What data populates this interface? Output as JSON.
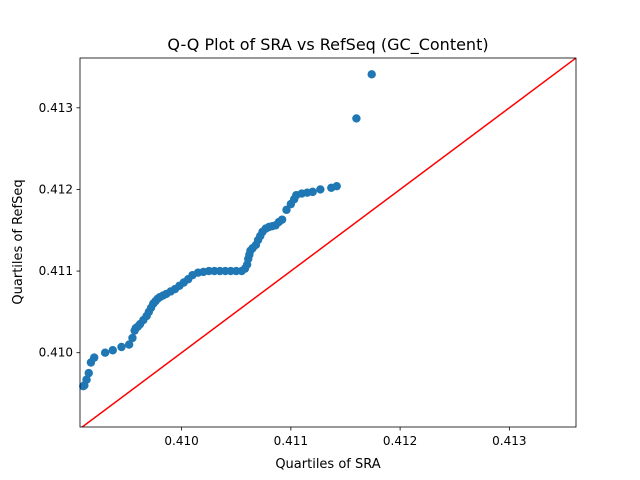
{
  "chart_data": {
    "type": "scatter",
    "title": "Q-Q Plot of SRA vs RefSeq (GC_Content)",
    "xlabel": "Quartiles of SRA",
    "ylabel": "Quartiles of RefSeq",
    "xlim": [
      0.40907,
      0.41361
    ],
    "ylim": [
      0.40909,
      0.41361
    ],
    "xticks": [
      "0.410",
      "0.411",
      "0.412",
      "0.413"
    ],
    "xtick_values": [
      0.41,
      0.411,
      0.412,
      0.413
    ],
    "yticks": [
      "0.410",
      "0.411",
      "0.412",
      "0.413"
    ],
    "ytick_values": [
      0.41,
      0.411,
      0.412,
      0.413
    ],
    "grid": false,
    "colors": {
      "points": "#1f77b4",
      "reference_line": "#ff0000"
    },
    "reference_line": {
      "slope": 1,
      "intercept": 0
    },
    "points": {
      "x": [
        0.4091,
        0.40911,
        0.40913,
        0.40915,
        0.40917,
        0.4092,
        0.4093,
        0.40937,
        0.40945,
        0.40952,
        0.40955,
        0.40957,
        0.40958,
        0.4096,
        0.40962,
        0.40965,
        0.40968,
        0.4097,
        0.40972,
        0.40974,
        0.40976,
        0.40978,
        0.4098,
        0.40983,
        0.40986,
        0.4099,
        0.40994,
        0.40998,
        0.41002,
        0.41006,
        0.4101,
        0.41015,
        0.4102,
        0.41025,
        0.4103,
        0.41035,
        0.4104,
        0.41045,
        0.4105,
        0.41055,
        0.41058,
        0.4106,
        0.41061,
        0.41062,
        0.41063,
        0.41065,
        0.41068,
        0.4107,
        0.41072,
        0.41074,
        0.41077,
        0.4108,
        0.41083,
        0.41086,
        0.41089,
        0.41092,
        0.41096,
        0.411,
        0.41103,
        0.41105,
        0.4111,
        0.41115,
        0.4112,
        0.41127,
        0.41137,
        0.41142,
        0.4116,
        0.41174
      ],
      "y": [
        0.40959,
        0.4096,
        0.40967,
        0.40975,
        0.40988,
        0.40994,
        0.41,
        0.41003,
        0.41007,
        0.4101,
        0.41018,
        0.41027,
        0.4103,
        0.41032,
        0.41035,
        0.4104,
        0.41045,
        0.4105,
        0.41055,
        0.4106,
        0.41063,
        0.41066,
        0.41068,
        0.4107,
        0.41072,
        0.41075,
        0.41078,
        0.41082,
        0.41086,
        0.4109,
        0.41095,
        0.41098,
        0.41099,
        0.411,
        0.411,
        0.411,
        0.411,
        0.411,
        0.411,
        0.411,
        0.41103,
        0.41108,
        0.41115,
        0.4112,
        0.41125,
        0.41128,
        0.41132,
        0.41138,
        0.41143,
        0.41148,
        0.41152,
        0.41154,
        0.41155,
        0.41156,
        0.4116,
        0.41163,
        0.41175,
        0.41182,
        0.41188,
        0.41193,
        0.41195,
        0.41196,
        0.41197,
        0.412,
        0.41202,
        0.41204,
        0.41287,
        0.41341
      ]
    }
  }
}
